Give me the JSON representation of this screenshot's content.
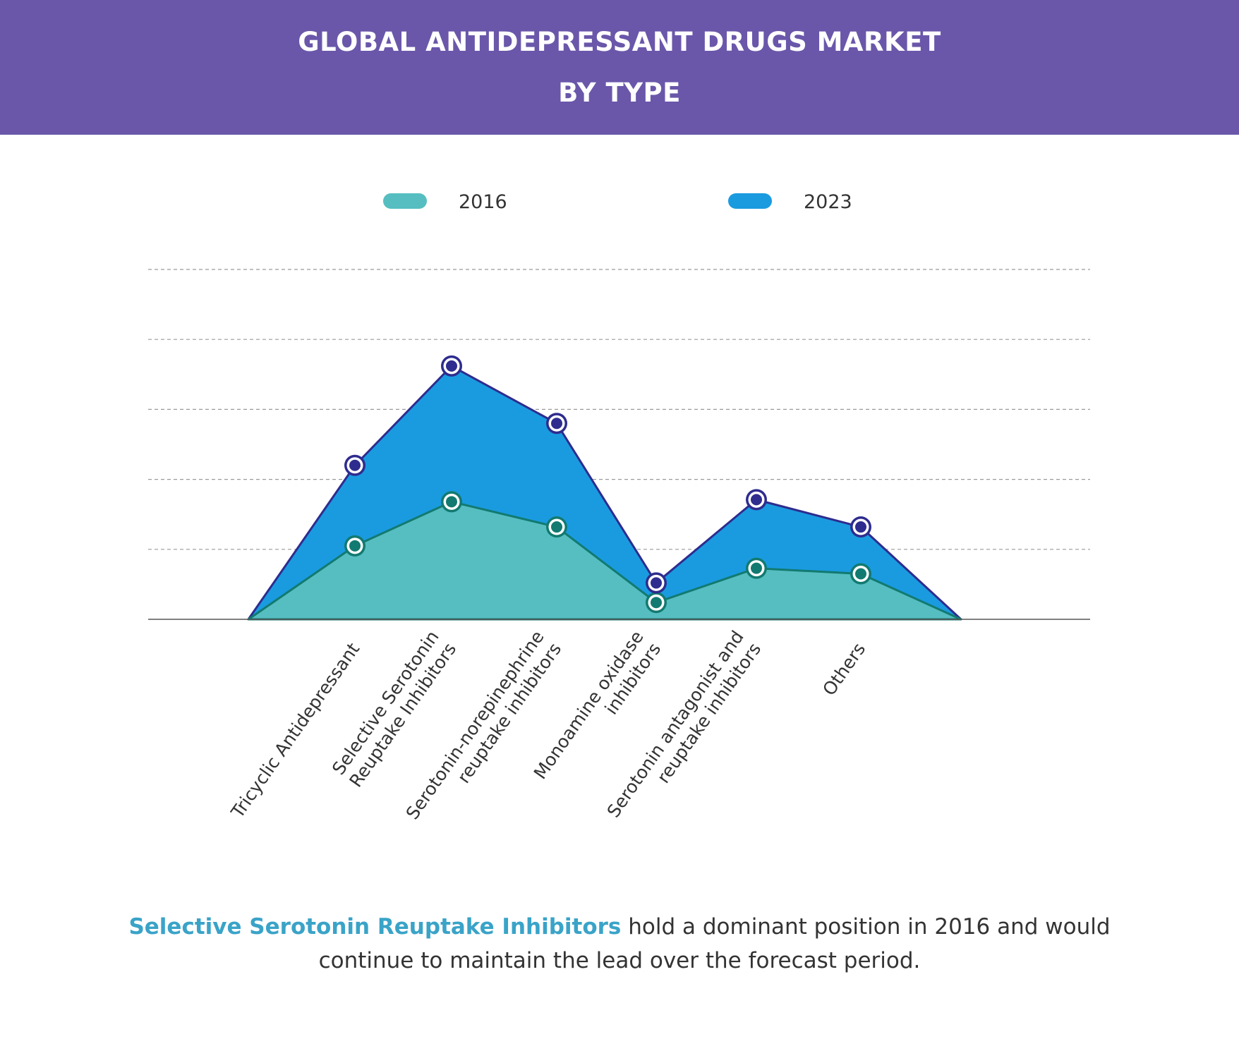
{
  "header": {
    "line1": "GLOBAL ANTIDEPRESSANT DRUGS MARKET",
    "line2": "BY TYPE"
  },
  "colors": {
    "header_bg": "#6a57aa",
    "series_2016": "#56bec0",
    "series_2016_stroke": "#127a70",
    "series_2023": "#1a9be0",
    "series_2023_stroke": "#2e2c8e",
    "caption_highlight": "#3aa3c8"
  },
  "chart_data": {
    "type": "area",
    "categories": [
      "Tricyclic Antidepressant",
      "Selective Serotonin Reuptake Inhibitors",
      "Serotonin-norepinephrine reuptake inhibitors",
      "Monoamine oxidase inhibitors",
      "Serotonin antagonist and reuptake inhibitors",
      "Others"
    ],
    "category_label_lines": [
      [
        "Tricyclic Antidepressant"
      ],
      [
        "Selective Serotonin",
        "Reuptake Inhibitors"
      ],
      [
        "Serotonin-norepinephrine",
        "reuptake inhibitors"
      ],
      [
        "Monoamine oxidase",
        "inhibitors"
      ],
      [
        "Serotonin antagonist and",
        "reuptake inhibitors"
      ],
      [
        "Others"
      ]
    ],
    "series": [
      {
        "name": "2016",
        "values": [
          1.05,
          1.68,
          1.32,
          0.24,
          0.73,
          0.65
        ]
      },
      {
        "name": "2023",
        "values": [
          2.2,
          3.62,
          2.8,
          0.52,
          1.71,
          1.32
        ]
      }
    ],
    "title": "",
    "xlabel": "",
    "ylabel": "",
    "ylim": [
      0,
      5
    ],
    "y_ticks": [
      0,
      1,
      2,
      3,
      4,
      5
    ],
    "grid": true,
    "legend": "top-center"
  },
  "caption": {
    "highlight": "Selective Serotonin Reuptake Inhibitors",
    "text": " hold a dominant position in 2016 and would continue to maintain the lead over the forecast period."
  }
}
